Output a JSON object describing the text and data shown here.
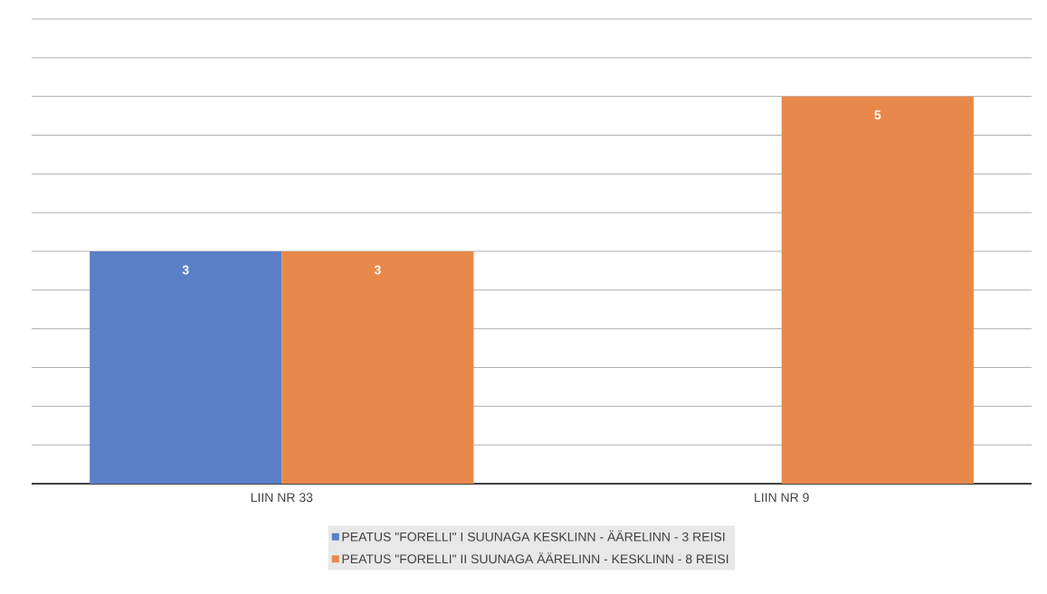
{
  "chart_data": {
    "type": "bar",
    "categories": [
      "LIIN NR 33",
      "LIIN NR 9"
    ],
    "series": [
      {
        "name": "PEATUS \"FORELLI\" I SUUNAGA KESKLINN - ÄÄRELINN - 3 REISI",
        "color": "#5b7fc7",
        "values": [
          3,
          null
        ]
      },
      {
        "name": "PEATUS \"FORELLI\" II SUUNAGA ÄÄRELINN - KESKLINN - 8 REISI",
        "color": "#e8894b",
        "values": [
          3,
          5
        ]
      }
    ],
    "tick_labels": "x",
    "grid": "y",
    "legend": "bottom",
    "data_labels": true
  }
}
